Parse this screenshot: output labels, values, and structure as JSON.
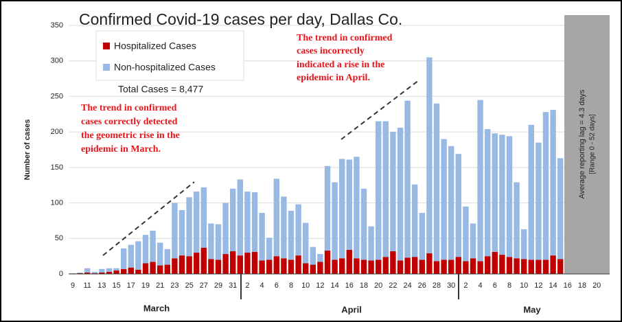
{
  "chart_data": {
    "type": "stacked_bar",
    "title": "Confirmed Covid-19 cases per day, Dallas Co.",
    "ylabel": "Number of cases",
    "categories": [
      "9",
      null,
      "11",
      null,
      "13",
      null,
      "15",
      null,
      "17",
      null,
      "19",
      null,
      "21",
      null,
      "23",
      null,
      "25",
      null,
      "27",
      null,
      "29",
      null,
      "31",
      null,
      "2",
      null,
      "4",
      null,
      "6",
      null,
      "8",
      null,
      "10",
      null,
      "12",
      null,
      "14",
      null,
      "16",
      null,
      "18",
      null,
      "20",
      null,
      "22",
      null,
      "24",
      null,
      "26",
      null,
      "28",
      null,
      "30",
      null,
      "2",
      null,
      "4",
      null,
      "6",
      null,
      "8",
      null,
      "10",
      null,
      "12",
      null,
      "14",
      null,
      "16",
      null,
      "18",
      null,
      "20"
    ],
    "month_labels": [
      "March",
      "April",
      "May"
    ],
    "series": [
      {
        "name": "Hospitalized Cases",
        "color": "#c00000",
        "values": [
          0,
          1,
          2,
          1,
          2,
          3,
          5,
          7,
          9,
          6,
          15,
          17,
          12,
          13,
          22,
          26,
          25,
          30,
          37,
          21,
          20,
          28,
          32,
          26,
          30,
          31,
          19,
          20,
          25,
          22,
          20,
          26,
          15,
          13,
          17,
          33,
          20,
          22,
          34,
          22,
          20,
          19,
          20,
          24,
          32,
          19,
          23,
          24,
          20,
          29,
          18,
          20,
          20,
          24,
          18,
          22,
          18,
          25,
          31,
          27,
          24,
          22,
          21,
          20,
          20,
          20,
          26,
          21,
          null,
          null,
          null,
          null,
          null
        ]
      },
      {
        "name": "Non-hospitalized Cases",
        "color": "#97b9e4",
        "values": [
          1,
          1,
          6,
          2,
          5,
          5,
          3,
          29,
          32,
          40,
          40,
          44,
          32,
          22,
          78,
          64,
          83,
          86,
          85,
          50,
          50,
          72,
          88,
          107,
          86,
          84,
          67,
          31,
          109,
          87,
          69,
          72,
          57,
          25,
          11,
          119,
          109,
          140,
          127,
          143,
          100,
          48,
          195,
          191,
          168,
          187,
          221,
          102,
          66,
          276,
          222,
          170,
          160,
          145,
          77,
          49,
          227,
          179,
          167,
          169,
          170,
          107,
          42,
          190,
          165,
          208,
          205,
          142,
          null,
          null,
          null,
          null,
          null
        ]
      }
    ],
    "ylim": [
      0,
      350
    ],
    "yticks": [
      0,
      50,
      100,
      150,
      200,
      250,
      300,
      350
    ],
    "grid": true,
    "legend": "upper left",
    "total_label": "Total Cases = 8,477",
    "notes": [
      [
        "The trend in confirmed",
        "cases correctly detected",
        "the geometric rise in the",
        "epidemic in March."
      ],
      [
        "The trend in confirmed",
        "cases incorrectly",
        "indicated a rise in the",
        "epidemic in April."
      ]
    ],
    "shaded_note": [
      "Average reporting lag = 4.3 days",
      "[Range 0 - 52 days]"
    ]
  }
}
